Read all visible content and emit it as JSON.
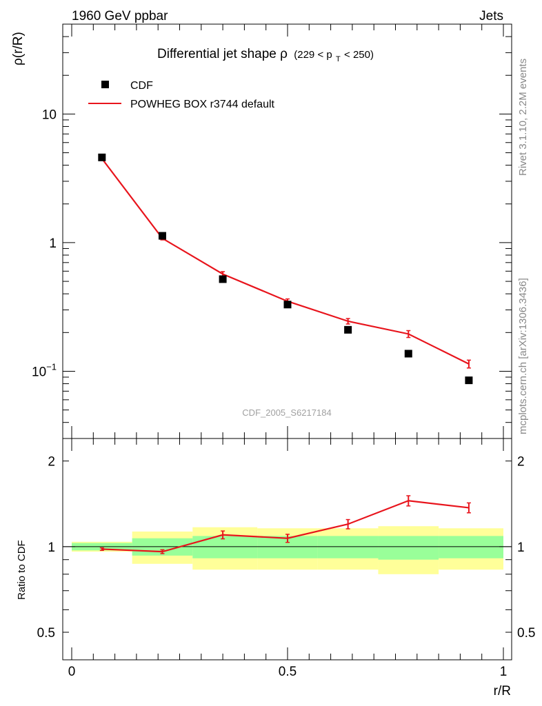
{
  "header": {
    "left": "1960 GeV ppbar",
    "right": "Jets"
  },
  "side_labels": {
    "rivet": "Rivet 3.1.10,  2.2M events",
    "mcplots": "mcplots.cern.ch [arXiv:1306.3436]"
  },
  "chart_data": [
    {
      "type": "scatter",
      "panel": "main",
      "title_main": "Differential jet shape ",
      "title_rho": "ρ",
      "title_range_pre": "(229 < p",
      "title_range_sub": "T",
      "title_range_post": " < 250)",
      "ylabel": "ρ(r/R)",
      "yscale": "log",
      "ylim": [
        0.03,
        50
      ],
      "xlim": [
        0,
        1
      ],
      "y_ticks": [
        {
          "value": 10,
          "label": "10"
        },
        {
          "value": 1,
          "label": "1"
        },
        {
          "value": 0.1,
          "label": "10",
          "sup": "−1"
        }
      ],
      "watermark": "CDF_2005_S6217184",
      "legend": {
        "position": "top-left",
        "entries": [
          {
            "label": "CDF",
            "style": "marker",
            "color": "#000000"
          },
          {
            "label": "POWHEG BOX r3744 default",
            "style": "line",
            "color": "#e8141c"
          }
        ]
      },
      "x": [
        0.07,
        0.21,
        0.35,
        0.5,
        0.64,
        0.78,
        0.92
      ],
      "series": [
        {
          "name": "CDF",
          "values": [
            4.6,
            1.13,
            0.52,
            0.33,
            0.21,
            0.137,
            0.085
          ]
        },
        {
          "name": "POWHEG BOX r3744 default",
          "values": [
            4.5,
            1.08,
            0.57,
            0.35,
            0.245,
            0.195,
            0.114
          ],
          "errors": [
            0.08,
            0.03,
            0.025,
            0.015,
            0.012,
            0.012,
            0.008
          ]
        }
      ]
    },
    {
      "type": "line",
      "panel": "ratio",
      "ylabel": "Ratio to CDF",
      "xlabel": "r/R",
      "yscale": "log",
      "ylim": [
        0.4,
        2.4
      ],
      "xlim": [
        0,
        1
      ],
      "y_ticks": [
        {
          "value": 2,
          "label": "2"
        },
        {
          "value": 1,
          "label": "1"
        },
        {
          "value": 0.5,
          "label": "0.5"
        }
      ],
      "x_ticks": [
        {
          "value": 0,
          "label": "0"
        },
        {
          "value": 0.5,
          "label": "0.5"
        },
        {
          "value": 1,
          "label": "1"
        }
      ],
      "bands": [
        {
          "x0": 0.0,
          "x1": 0.14,
          "stat": [
            0.97,
            1.03
          ],
          "total": [
            0.96,
            1.04
          ]
        },
        {
          "x0": 0.14,
          "x1": 0.28,
          "stat": [
            0.93,
            1.07
          ],
          "total": [
            0.87,
            1.13
          ]
        },
        {
          "x0": 0.28,
          "x1": 0.43,
          "stat": [
            0.91,
            1.09
          ],
          "total": [
            0.83,
            1.17
          ]
        },
        {
          "x0": 0.43,
          "x1": 0.57,
          "stat": [
            0.91,
            1.09
          ],
          "total": [
            0.83,
            1.16
          ]
        },
        {
          "x0": 0.57,
          "x1": 0.71,
          "stat": [
            0.91,
            1.09
          ],
          "total": [
            0.83,
            1.16
          ]
        },
        {
          "x0": 0.71,
          "x1": 0.85,
          "stat": [
            0.9,
            1.09
          ],
          "total": [
            0.8,
            1.18
          ]
        },
        {
          "x0": 0.85,
          "x1": 1.0,
          "stat": [
            0.91,
            1.09
          ],
          "total": [
            0.83,
            1.16
          ]
        }
      ],
      "band_colors": {
        "stat": "#99ff99",
        "total": "#ffff99"
      },
      "x": [
        0.07,
        0.21,
        0.35,
        0.5,
        0.64,
        0.78,
        0.92
      ],
      "values": [
        0.98,
        0.96,
        1.1,
        1.07,
        1.2,
        1.45,
        1.37
      ],
      "errors": [
        0.01,
        0.015,
        0.035,
        0.035,
        0.045,
        0.06,
        0.055
      ]
    }
  ]
}
